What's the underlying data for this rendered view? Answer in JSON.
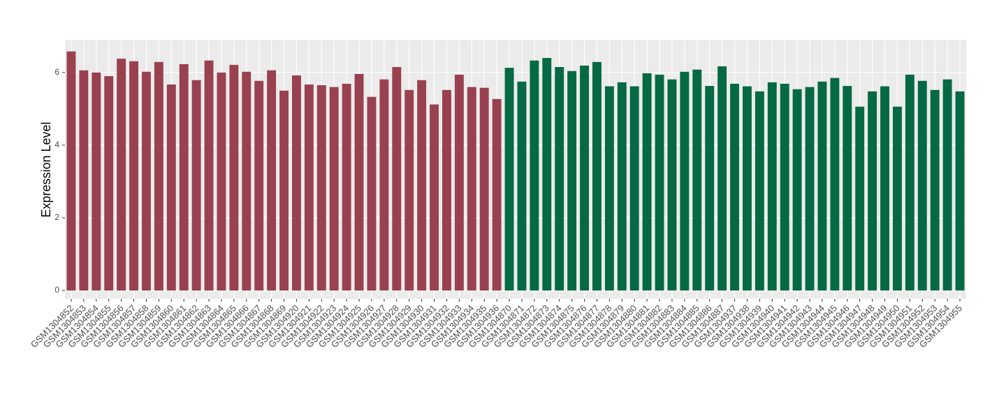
{
  "chart_data": {
    "type": "bar",
    "y_label": "Expression Level",
    "categories": [
      "GSM1304852",
      "GSM1304853",
      "GSM1304854",
      "GSM1304855",
      "GSM1304856",
      "GSM1304857",
      "GSM1304858",
      "GSM1304859",
      "GSM1304860",
      "GSM1304861",
      "GSM1304862",
      "GSM1304863",
      "GSM1304864",
      "GSM1304865",
      "GSM1304866",
      "GSM1304867",
      "GSM1304868",
      "GSM1304869",
      "GSM1304920",
      "GSM1304921",
      "GSM1304922",
      "GSM1304923",
      "GSM1304924",
      "GSM1304925",
      "GSM1304926",
      "GSM1304927",
      "GSM1304928",
      "GSM1304929",
      "GSM1304930",
      "GSM1304931",
      "GSM1304932",
      "GSM1304933",
      "GSM1304934",
      "GSM1304935",
      "GSM1304936",
      "GSM1304870",
      "GSM1304871",
      "GSM1304872",
      "GSM1304873",
      "GSM1304874",
      "GSM1304875",
      "GSM1304876",
      "GSM1304877",
      "GSM1304878",
      "GSM1304879",
      "GSM1304880",
      "GSM1304881",
      "GSM1304882",
      "GSM1304883",
      "GSM1304884",
      "GSM1304885",
      "GSM1304886",
      "GSM1304887",
      "GSM1304937",
      "GSM1304938",
      "GSM1304939",
      "GSM1304940",
      "GSM1304941",
      "GSM1304942",
      "GSM1304943",
      "GSM1304944",
      "GSM1304945",
      "GSM1304946",
      "GSM1304947",
      "GSM1304948",
      "GSM1304949",
      "GSM1304950",
      "GSM1304951",
      "GSM1304952",
      "GSM1304953",
      "GSM1304954",
      "GSM1304955"
    ],
    "values": [
      6.58,
      6.06,
      6.0,
      5.9,
      6.38,
      6.31,
      6.02,
      6.29,
      5.67,
      6.23,
      5.79,
      6.33,
      6.0,
      6.21,
      6.02,
      5.77,
      6.06,
      5.5,
      5.92,
      5.67,
      5.65,
      5.6,
      5.69,
      5.96,
      5.33,
      5.81,
      6.15,
      5.52,
      5.79,
      5.12,
      5.52,
      5.94,
      5.6,
      5.58,
      5.27,
      6.13,
      5.75,
      6.33,
      6.4,
      6.15,
      6.04,
      6.19,
      6.29,
      5.62,
      5.73,
      5.62,
      5.98,
      5.94,
      5.81,
      6.02,
      6.08,
      5.63,
      6.17,
      5.69,
      5.62,
      5.48,
      5.73,
      5.69,
      5.54,
      5.6,
      5.75,
      5.85,
      5.63,
      5.06,
      5.48,
      5.62,
      5.06,
      5.94,
      5.77,
      5.52,
      5.81,
      5.48
    ],
    "colors": [
      "#99414f",
      "#99414f",
      "#99414f",
      "#99414f",
      "#99414f",
      "#99414f",
      "#99414f",
      "#99414f",
      "#99414f",
      "#99414f",
      "#99414f",
      "#99414f",
      "#99414f",
      "#99414f",
      "#99414f",
      "#99414f",
      "#99414f",
      "#99414f",
      "#99414f",
      "#99414f",
      "#99414f",
      "#99414f",
      "#99414f",
      "#99414f",
      "#99414f",
      "#99414f",
      "#99414f",
      "#99414f",
      "#99414f",
      "#99414f",
      "#99414f",
      "#99414f",
      "#99414f",
      "#99414f",
      "#99414f",
      "#056943",
      "#056943",
      "#056943",
      "#056943",
      "#056943",
      "#056943",
      "#056943",
      "#056943",
      "#056943",
      "#056943",
      "#056943",
      "#056943",
      "#056943",
      "#056943",
      "#056943",
      "#056943",
      "#056943",
      "#056943",
      "#056943",
      "#056943",
      "#056943",
      "#056943",
      "#056943",
      "#056943",
      "#056943",
      "#056943",
      "#056943",
      "#056943",
      "#056943",
      "#056943",
      "#056943",
      "#056943",
      "#056943",
      "#056943",
      "#056943",
      "#056943",
      "#056943"
    ],
    "ylim": [
      -0.23,
      6.9
    ],
    "yticks": [
      0,
      2,
      4,
      6
    ],
    "grid": true
  }
}
